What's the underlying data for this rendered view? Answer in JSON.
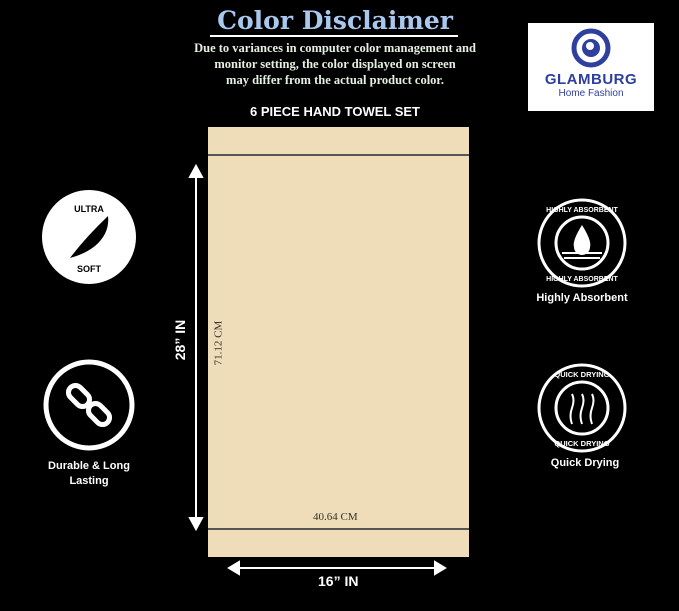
{
  "disclaimer": {
    "title": "Color Disclaimer",
    "lines": [
      "Due to variances in computer color management and",
      "monitor setting, the color displayed on screen",
      "may differ from the actual product color."
    ]
  },
  "product_title": "6 PIECE HAND TOWEL SET",
  "logo": {
    "brand": "GLAMBURG",
    "tagline": "Home Fashion",
    "color": "#2f3f9e"
  },
  "towel": {
    "color": "#efdcb9",
    "height_cm": "71.12 CM",
    "width_cm": "40.64 CM",
    "height_in": "28” IN",
    "width_in": "16” IN"
  },
  "badges": {
    "ultra_soft": {
      "top": "ULTRA",
      "bottom": "SOFT",
      "icon": "feather-icon"
    },
    "durable": {
      "label": "Durable & Long Lasting",
      "icon": "chain-link-icon"
    },
    "absorbent": {
      "ring": "HIGHLY ABSORBENT",
      "label": "Highly Absorbent",
      "icon": "water-drop-icon"
    },
    "quick_dry": {
      "ring": "QUICK DRYING",
      "label": "Quick Drying",
      "icon": "steam-arrows-icon"
    }
  }
}
